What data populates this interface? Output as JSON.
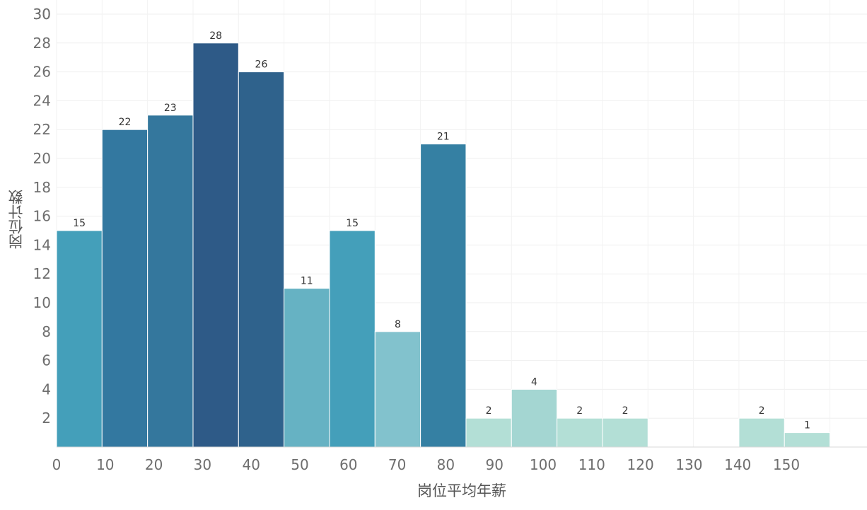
{
  "chart_data": {
    "type": "bar",
    "title": "",
    "xlabel": "岗位平均年薪",
    "ylabel": "岗位计数",
    "bin_width": 9.35,
    "bins": [
      {
        "start": 0,
        "value": 15,
        "color": "#449fba"
      },
      {
        "start": 9.35,
        "value": 22,
        "color": "#3378a0"
      },
      {
        "start": 18.7,
        "value": 23,
        "color": "#34779d"
      },
      {
        "start": 28.05,
        "value": 28,
        "color": "#2e5a87"
      },
      {
        "start": 37.4,
        "value": 26,
        "color": "#2f628c"
      },
      {
        "start": 46.75,
        "value": 11,
        "color": "#66b2c3"
      },
      {
        "start": 56.1,
        "value": 15,
        "color": "#449fba"
      },
      {
        "start": 65.45,
        "value": 8,
        "color": "#82c2cd"
      },
      {
        "start": 74.8,
        "value": 21,
        "color": "#3580a3"
      },
      {
        "start": 84.15,
        "value": 2,
        "color": "#b3dfd6"
      },
      {
        "start": 93.5,
        "value": 4,
        "color": "#a4d6d2"
      },
      {
        "start": 102.85,
        "value": 2,
        "color": "#b3dfd6"
      },
      {
        "start": 112.2,
        "value": 2,
        "color": "#b3dfd6"
      },
      {
        "start": 121.55,
        "value": 0,
        "color": "#b3dfd6"
      },
      {
        "start": 130.9,
        "value": 0,
        "color": "#b3dfd6"
      },
      {
        "start": 140.25,
        "value": 2,
        "color": "#b3dfd6"
      },
      {
        "start": 149.6,
        "value": 1,
        "color": "#b3dfd6"
      }
    ],
    "x_ticks": [
      0,
      10,
      20,
      30,
      40,
      50,
      60,
      70,
      80,
      90,
      100,
      110,
      120,
      130,
      140,
      150
    ],
    "y_ticks": [
      2,
      4,
      6,
      8,
      10,
      12,
      14,
      16,
      18,
      20,
      22,
      24,
      26,
      28,
      30
    ],
    "xlim": [
      0,
      160
    ],
    "ylim": [
      0,
      30
    ],
    "grid": true,
    "legend": "none"
  }
}
